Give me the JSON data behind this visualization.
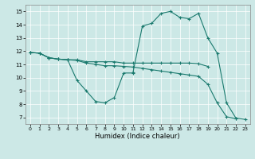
{
  "xlabel": "Humidex (Indice chaleur)",
  "xlim": [
    -0.5,
    23.5
  ],
  "ylim": [
    6.5,
    15.5
  ],
  "xticks": [
    0,
    1,
    2,
    3,
    4,
    5,
    6,
    7,
    8,
    9,
    10,
    11,
    12,
    13,
    14,
    15,
    16,
    17,
    18,
    19,
    20,
    21,
    22,
    23
  ],
  "yticks": [
    7,
    8,
    9,
    10,
    11,
    12,
    13,
    14,
    15
  ],
  "bg_color": "#cce8e6",
  "line_color": "#1a7a6e",
  "line1_x": [
    0,
    1,
    2,
    3,
    4,
    5,
    6,
    7,
    8,
    9,
    10,
    11
  ],
  "line1_y": [
    11.9,
    11.85,
    11.5,
    11.4,
    11.35,
    9.8,
    9.0,
    8.2,
    8.1,
    8.5,
    10.35,
    10.35
  ],
  "line2_x": [
    0,
    1,
    2,
    3,
    4,
    5,
    6,
    7,
    8,
    9,
    10,
    11,
    12,
    13,
    14,
    15,
    16,
    17,
    18,
    19
  ],
  "line2_y": [
    11.9,
    11.85,
    11.5,
    11.4,
    11.35,
    11.35,
    11.2,
    11.2,
    11.2,
    11.2,
    11.1,
    11.1,
    11.1,
    11.1,
    11.1,
    11.1,
    11.1,
    11.1,
    11.05,
    10.85
  ],
  "line3_x": [
    0,
    1,
    2,
    3,
    4,
    5,
    6,
    7,
    8,
    9,
    10,
    11,
    12,
    13,
    14,
    15,
    16,
    17,
    18,
    19,
    20,
    21,
    22
  ],
  "line3_y": [
    11.9,
    11.85,
    11.5,
    11.4,
    11.35,
    11.3,
    11.1,
    11.0,
    10.9,
    10.9,
    10.85,
    10.8,
    10.7,
    10.6,
    10.5,
    10.4,
    10.3,
    10.2,
    10.1,
    9.5,
    8.1,
    7.05,
    6.9
  ],
  "line4_x": [
    11,
    12,
    13,
    14,
    15,
    16,
    17,
    18,
    19,
    20,
    21,
    22,
    23
  ],
  "line4_y": [
    10.4,
    13.9,
    14.1,
    14.85,
    15.0,
    14.55,
    14.45,
    14.85,
    13.0,
    11.85,
    8.1,
    6.95,
    6.85
  ]
}
